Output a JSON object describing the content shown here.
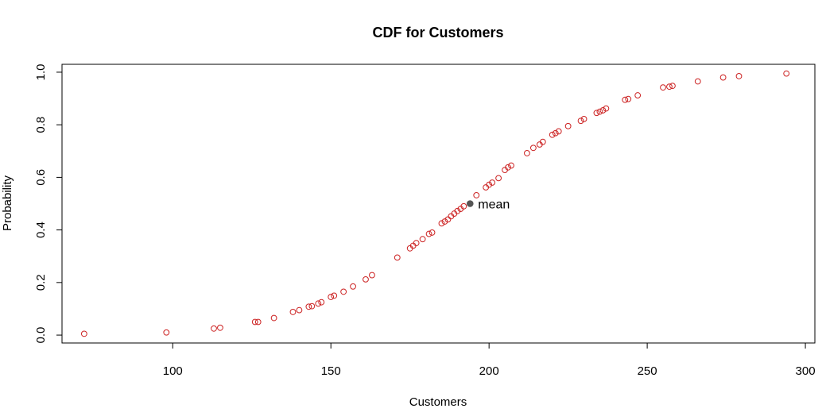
{
  "chart_data": {
    "type": "scatter",
    "title": "CDF for Customers",
    "xlabel": "Customers",
    "ylabel": "Probability",
    "xlim": [
      65,
      303
    ],
    "ylim": [
      -0.03,
      1.03
    ],
    "xticks": [
      100,
      150,
      200,
      250,
      300
    ],
    "yticks": [
      0.0,
      0.2,
      0.4,
      0.6,
      0.8,
      1.0
    ],
    "xtick_labels": [
      "100",
      "150",
      "200",
      "250",
      "300"
    ],
    "ytick_labels": [
      "0.0",
      "0.2",
      "0.4",
      "0.6",
      "0.8",
      "1.0"
    ],
    "grid": false,
    "point_color": "#cc2222",
    "mean_color": "#555555",
    "series": [
      {
        "x": [
          72,
          98,
          113,
          115,
          126,
          127,
          132,
          138,
          140,
          143,
          144,
          146,
          147,
          150,
          151,
          154,
          157,
          161,
          163,
          171,
          175,
          176,
          177,
          179,
          181,
          182,
          185,
          186,
          187,
          188,
          189,
          190,
          191,
          192,
          196,
          199,
          200,
          201,
          203,
          205,
          206,
          207,
          212,
          214,
          216,
          217,
          220,
          221,
          222,
          225,
          229,
          230,
          234,
          235,
          236,
          237,
          243,
          244,
          247,
          255,
          257,
          258,
          266,
          274,
          279,
          294
        ],
        "y": [
          0.005,
          0.01,
          0.025,
          0.028,
          0.05,
          0.05,
          0.065,
          0.088,
          0.095,
          0.108,
          0.11,
          0.12,
          0.125,
          0.145,
          0.15,
          0.165,
          0.185,
          0.212,
          0.228,
          0.295,
          0.33,
          0.34,
          0.35,
          0.365,
          0.385,
          0.39,
          0.425,
          0.432,
          0.44,
          0.452,
          0.462,
          0.472,
          0.48,
          0.49,
          0.532,
          0.562,
          0.572,
          0.58,
          0.597,
          0.628,
          0.638,
          0.645,
          0.692,
          0.712,
          0.725,
          0.735,
          0.762,
          0.768,
          0.775,
          0.795,
          0.815,
          0.822,
          0.845,
          0.85,
          0.855,
          0.862,
          0.895,
          0.898,
          0.912,
          0.942,
          0.945,
          0.948,
          0.965,
          0.98,
          0.985,
          0.995
        ]
      }
    ],
    "annotation": {
      "label": "mean",
      "x": 194,
      "y": 0.5
    }
  }
}
